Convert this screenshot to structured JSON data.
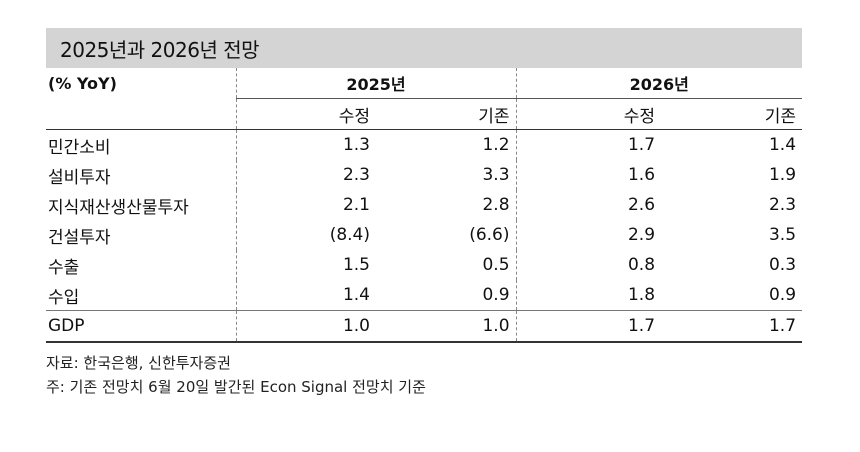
{
  "title": "2025년과 2026년 전망",
  "unit_label": "(% YoY)",
  "years": [
    "2025년",
    "2026년"
  ],
  "subheaders": [
    "수정",
    "기존",
    "수정",
    "기존"
  ],
  "rows": [
    {
      "label": "민간소비",
      "values": [
        "1.3",
        "1.2",
        "1.7",
        "1.4"
      ]
    },
    {
      "label": "설비투자",
      "values": [
        "2.3",
        "3.3",
        "1.6",
        "1.9"
      ]
    },
    {
      "label": "지식재산생산물투자",
      "values": [
        "2.1",
        "2.8",
        "2.6",
        "2.3"
      ]
    },
    {
      "label": "건설투자",
      "values": [
        "(8.4)",
        "(6.6)",
        "2.9",
        "3.5"
      ]
    },
    {
      "label": "수출",
      "values": [
        "1.5",
        "0.5",
        "0.8",
        "0.3"
      ]
    },
    {
      "label": "수입",
      "values": [
        "1.4",
        "0.9",
        "1.8",
        "0.9"
      ]
    },
    {
      "label": "GDP",
      "values": [
        "1.0",
        "1.0",
        "1.7",
        "1.7"
      ]
    }
  ],
  "footnotes": {
    "source": "자료: 한국은행, 신한투자증권",
    "note": "주: 기존 전망치 6월 20일 발간된 Econ Signal 전망치 기준"
  }
}
